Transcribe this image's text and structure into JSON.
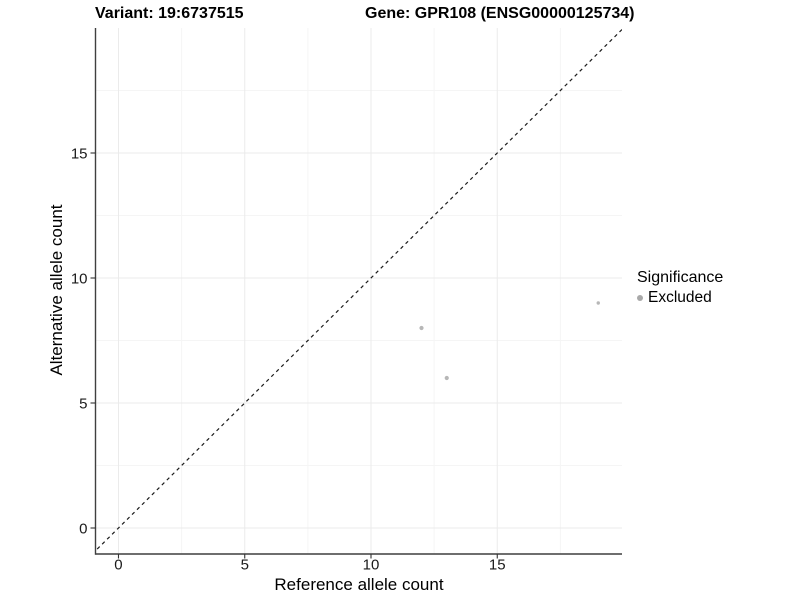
{
  "header": {
    "variant_title": "Variant: 19:6737515",
    "gene_title": "Gene: GPR108 (ENSG00000125734)"
  },
  "legend": {
    "title": "Significance",
    "items": [
      {
        "label": "Excluded",
        "color": "#a9a9a9"
      }
    ]
  },
  "chart_data": {
    "type": "scatter",
    "title": "Variant: 19:6737515 — Gene: GPR108 (ENSG00000125734)",
    "xlabel": "Reference allele count",
    "ylabel": "Alternative allele count",
    "xlim": [
      -0.91,
      19.94
    ],
    "ylim": [
      -1.04,
      20.0
    ],
    "x_ticks": {
      "values": [
        0,
        5,
        10,
        15
      ],
      "labels": [
        "0",
        "5",
        "10",
        "15"
      ]
    },
    "y_ticks": {
      "values": [
        0,
        5,
        10,
        15
      ],
      "labels": [
        "0",
        "5",
        "10",
        "15"
      ]
    },
    "x_minor_breaks": [
      2.5,
      7.5,
      12.5,
      17.5
    ],
    "y_minor_breaks": [
      2.5,
      7.5,
      12.5,
      17.5
    ],
    "grid": "major+minor",
    "legend_position": "right-center",
    "series": [
      {
        "name": "Excluded",
        "color": "#b7b7b7",
        "points": [
          {
            "x": 12,
            "y": 8,
            "r": 2.1
          },
          {
            "x": 13,
            "y": 6,
            "r": 2.1
          },
          {
            "x": 19,
            "y": 9,
            "r": 1.7
          }
        ]
      }
    ],
    "reference_line": {
      "kind": "identity",
      "slope": 1,
      "intercept": 0,
      "style": "dashed",
      "color": "#1c1c1c"
    },
    "colors": {
      "background": "#ffffff",
      "grid_major": "#ebebeb",
      "grid_minor": "#f5f5f5",
      "axis_line": "#3f3f3f",
      "tick_mark": "#333333",
      "tick_label": "#1a1a1a"
    }
  }
}
